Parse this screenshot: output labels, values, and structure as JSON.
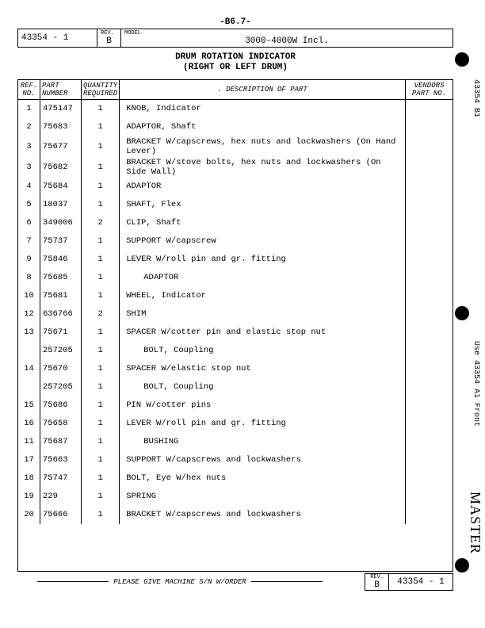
{
  "pageNum": "-B6.7-",
  "header": {
    "doc": "43354 - 1",
    "revLabel": "REV.",
    "rev": "B",
    "modelLabel": "MODEL",
    "model": "3000-4000W Incl."
  },
  "title1": "DRUM ROTATION INDICATOR",
  "title2": "(RIGHT OR LEFT DRUM)",
  "columns": {
    "ref": "REF.\nNO.",
    "part": "PART\nNUMBER",
    "qty": "QUANTITY\nREQUIRED",
    "desc": ". DESCRIPTION OF PART",
    "vend": "VENDORS\nPART NO."
  },
  "rows": [
    {
      "ref": "1",
      "part": "475147",
      "qty": "1",
      "desc": "KNOB, Indicator",
      "indent": false
    },
    {
      "ref": "2",
      "part": "75683",
      "qty": "1",
      "desc": "ADAPTOR, Shaft",
      "indent": false
    },
    {
      "ref": "3",
      "part": "75677",
      "qty": "1",
      "desc": "BRACKET W/capscrews, hex nuts and lockwashers (On Hand Lever)",
      "indent": false
    },
    {
      "ref": "3",
      "part": "75682",
      "qty": "1",
      "desc": "BRACKET W/stove bolts, hex nuts and lockwashers (On Side Wall)",
      "indent": false
    },
    {
      "ref": "4",
      "part": "75684",
      "qty": "1",
      "desc": "ADAPTOR",
      "indent": false
    },
    {
      "ref": "5",
      "part": "18037",
      "qty": "1",
      "desc": "SHAFT, Flex",
      "indent": false
    },
    {
      "ref": "6",
      "part": "349006",
      "qty": "2",
      "desc": "CLIP, Shaft",
      "indent": false
    },
    {
      "ref": "7",
      "part": "75737",
      "qty": "1",
      "desc": "SUPPORT W/capscrew",
      "indent": false
    },
    {
      "ref": "9",
      "part": "75846",
      "qty": "1",
      "desc": "LEVER W/roll pin and gr. fitting",
      "indent": false
    },
    {
      "ref": "8",
      "part": "75685",
      "qty": "1",
      "desc": "ADAPTOR",
      "indent": true
    },
    {
      "ref": "10",
      "part": "75681",
      "qty": "1",
      "desc": "WHEEL, Indicator",
      "indent": false
    },
    {
      "ref": "12",
      "part": "636766",
      "qty": "2",
      "desc": "SHIM",
      "indent": false
    },
    {
      "ref": "13",
      "part": "75671",
      "qty": "1",
      "desc": "SPACER W/cotter pin and elastic stop nut",
      "indent": false
    },
    {
      "ref": "",
      "part": "257205",
      "qty": "1",
      "desc": "BOLT, Coupling",
      "indent": true
    },
    {
      "ref": "14",
      "part": "75670",
      "qty": "1",
      "desc": "SPACER W/elastic stop nut",
      "indent": false
    },
    {
      "ref": "",
      "part": "257205",
      "qty": "1",
      "desc": "BOLT, Coupling",
      "indent": true
    },
    {
      "ref": "15",
      "part": "75686",
      "qty": "1",
      "desc": "PIN W/cotter pins",
      "indent": false
    },
    {
      "ref": "16",
      "part": "75658",
      "qty": "1",
      "desc": "LEVER W/roll pin and gr. fitting",
      "indent": false
    },
    {
      "ref": "11",
      "part": "75687",
      "qty": "1",
      "desc": "BUSHING",
      "indent": true
    },
    {
      "ref": "17",
      "part": "75663",
      "qty": "1",
      "desc": "SUPPORT W/capscrews and lockwashers",
      "indent": false
    },
    {
      "ref": "18",
      "part": "75747",
      "qty": "1",
      "desc": "BOLT, Eye W/hex nuts",
      "indent": false
    },
    {
      "ref": "19",
      "part": "229",
      "qty": "1",
      "desc": "SPRING",
      "indent": false
    },
    {
      "ref": "20",
      "part": "75666",
      "qty": "1",
      "desc": "BRACKET W/capscrews and lockwashers",
      "indent": false
    }
  ],
  "footer": {
    "text": "PLEASE GIVE MACHINE S/N W/ORDER",
    "revLabel": "REV.",
    "rev": "B",
    "doc": "43354 - 1"
  },
  "side1": "43354 B1",
  "side2": "Use 43354 A1 Front",
  "sideMaster": "MASTER"
}
